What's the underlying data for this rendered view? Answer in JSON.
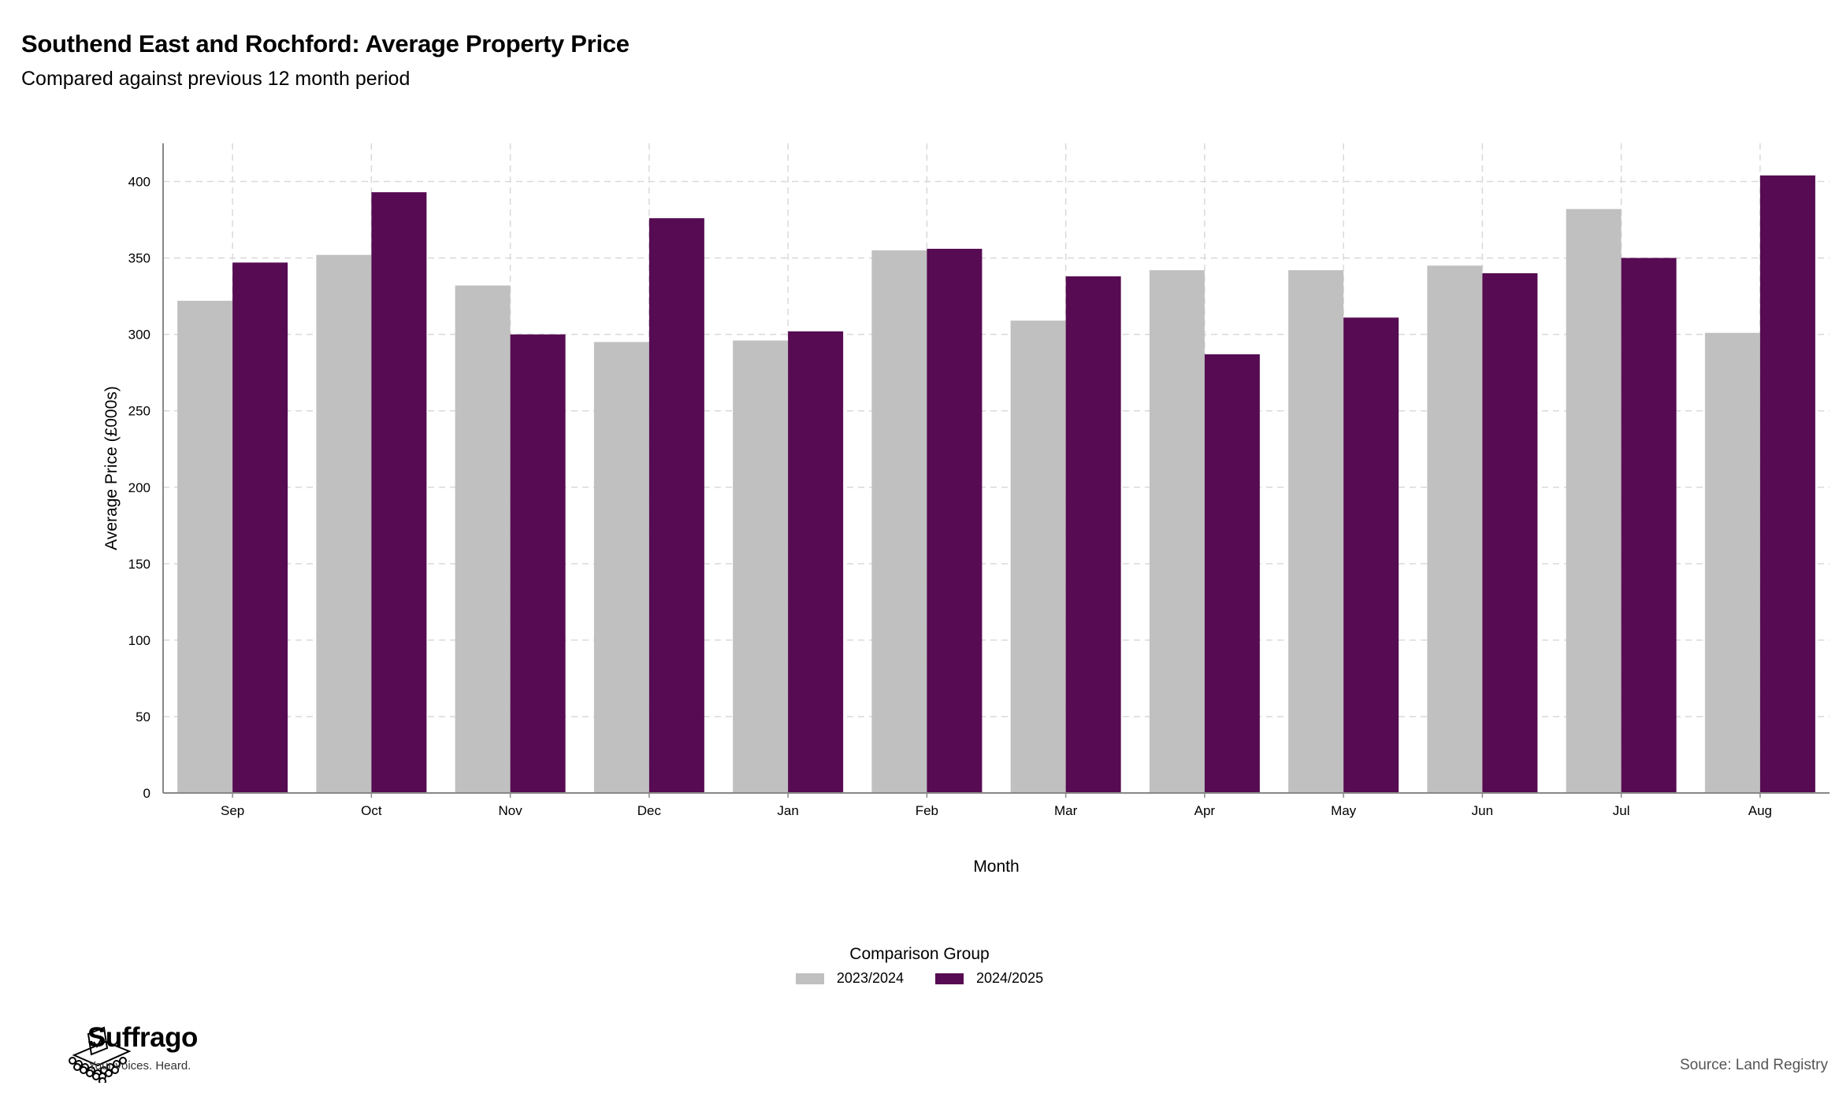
{
  "header": {
    "title": "Southend East and Rochford: Average Property Price",
    "subtitle": "Compared against previous 12 month period"
  },
  "chart_data": {
    "type": "bar",
    "xlabel": "Month",
    "ylabel": "Average Price (£000s)",
    "ylim": [
      0,
      425
    ],
    "yticks": [
      0,
      50,
      100,
      150,
      200,
      250,
      300,
      350,
      400
    ],
    "grid": true,
    "legend_placement": "bottom-center",
    "legend_title": "Comparison Group",
    "categories": [
      "Sep",
      "Oct",
      "Nov",
      "Dec",
      "Jan",
      "Feb",
      "Mar",
      "Apr",
      "May",
      "Jun",
      "Jul",
      "Aug"
    ],
    "series": [
      {
        "name": "2023/2024",
        "color": "#c0c0c0",
        "values": [
          322,
          352,
          332,
          295,
          296,
          355,
          309,
          342,
          342,
          345,
          382,
          301
        ]
      },
      {
        "name": "2024/2025",
        "color": "#560b52",
        "values": [
          347,
          393,
          300,
          376,
          302,
          356,
          338,
          287,
          311,
          340,
          350,
          404
        ]
      }
    ]
  },
  "footer": {
    "brand_name": "Suffrago",
    "brand_tagline": "Your voices. Heard.",
    "source": "Source: Land Registry"
  }
}
